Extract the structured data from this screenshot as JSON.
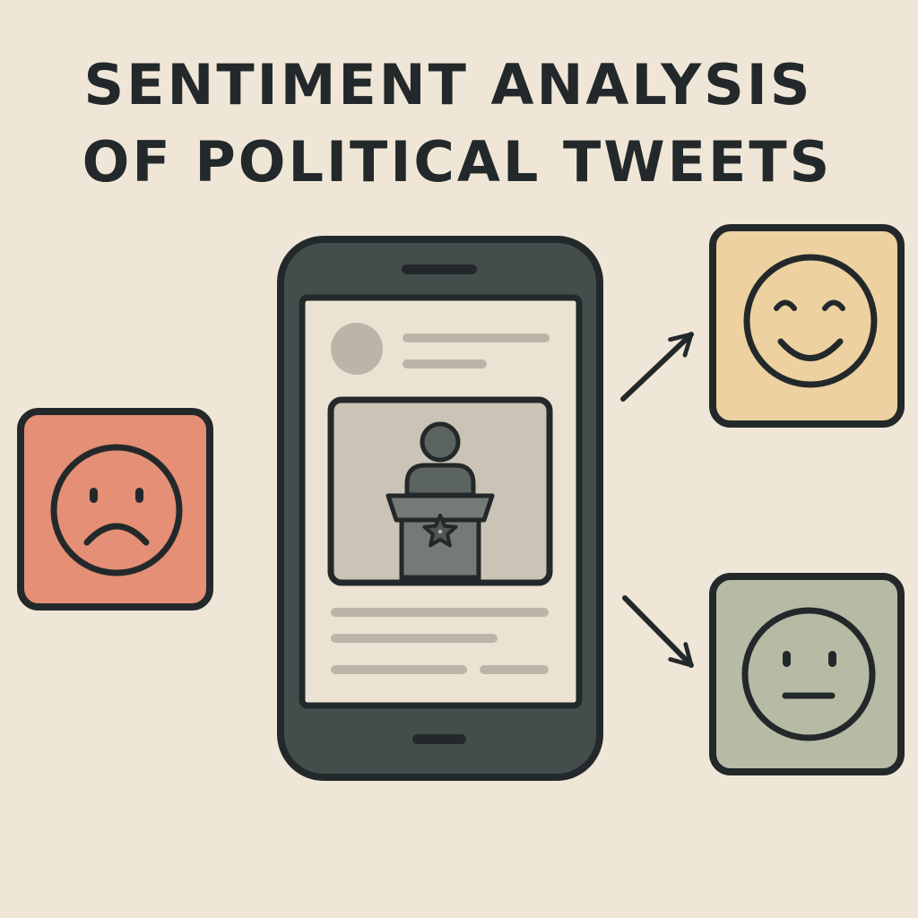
{
  "title": {
    "line1": "SENTIMENT ANALYSIS",
    "line2": "OF POLITICAL TWEETS"
  },
  "colors": {
    "background": "#f0e6d8",
    "outline": "#23292a",
    "phone_body": "#434e4c",
    "phone_screen": "#ece2d3",
    "negative_card": "#e48f76",
    "positive_card": "#edd1a0",
    "neutral_card": "#b7bba6"
  },
  "icons": {
    "phone": "smartphone-icon",
    "post_image": "politician-at-podium-icon",
    "negative": "sad-face-icon",
    "positive": "smiling-face-icon",
    "neutral": "neutral-face-icon",
    "arrows": "arrow-icon"
  }
}
